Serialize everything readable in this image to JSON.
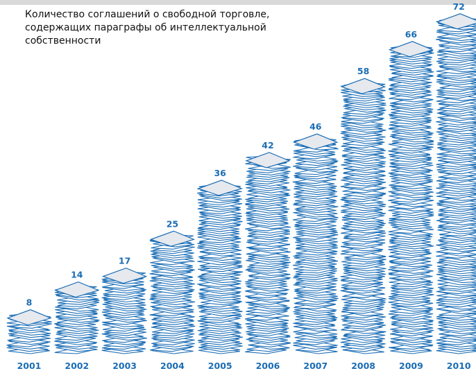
{
  "chart_data": {
    "type": "bar",
    "title": "Количество соглашений о свободной торговле, содержащих параграфы об интеллектуальной собственности",
    "categories": [
      "2001",
      "2002",
      "2003",
      "2004",
      "2005",
      "2006",
      "2007",
      "2008",
      "2009",
      "2010"
    ],
    "values": [
      8,
      14,
      17,
      25,
      36,
      42,
      46,
      58,
      66,
      72
    ],
    "color": "#1b6db5"
  }
}
